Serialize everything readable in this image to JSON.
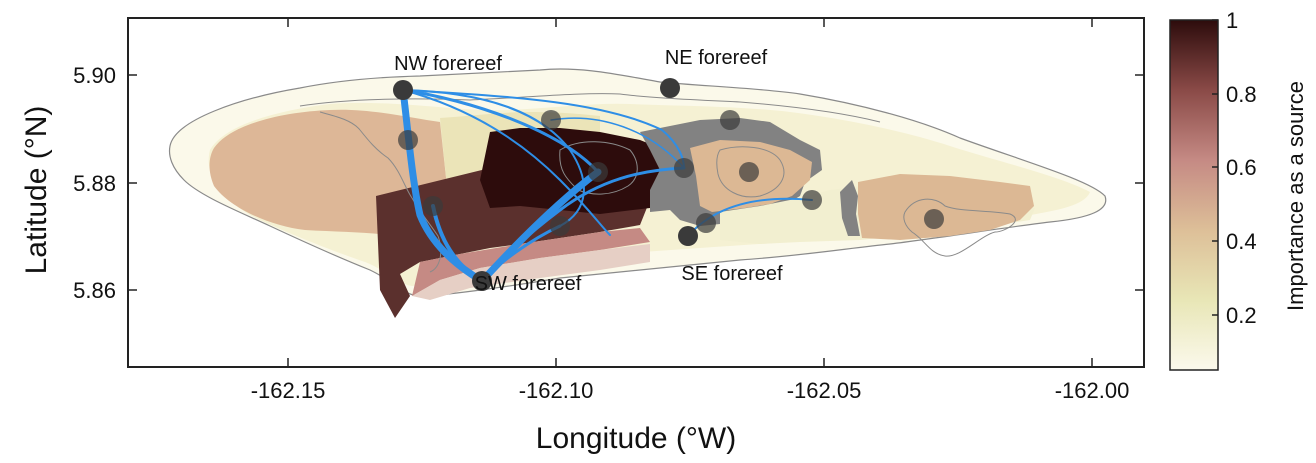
{
  "axes": {
    "xlabel": "Longitude (°W)",
    "ylabel": "Latitude (°N)",
    "xlim": [
      -162.18,
      -161.99
    ],
    "ylim": [
      5.84,
      5.91
    ],
    "x_ticks": [
      {
        "value": -162.15,
        "label": "-162.15"
      },
      {
        "value": -162.1,
        "label": "-162.10"
      },
      {
        "value": -162.05,
        "label": "-162.05"
      },
      {
        "value": -162.0,
        "label": "-162.00"
      }
    ],
    "y_ticks": [
      {
        "value": 5.9,
        "label": "5.90"
      },
      {
        "value": 5.88,
        "label": "5.88"
      },
      {
        "value": 5.86,
        "label": "5.86"
      }
    ]
  },
  "colorbar": {
    "title": "Importance as a source",
    "range": [
      0.05,
      1
    ],
    "ticks": [
      {
        "value": 1,
        "label": "1"
      },
      {
        "value": 0.8,
        "label": "0.8"
      },
      {
        "value": 0.6,
        "label": "0.6"
      },
      {
        "value": 0.4,
        "label": "0.4"
      },
      {
        "value": 0.2,
        "label": "0.2"
      }
    ],
    "colors": [
      "#fbf9ec",
      "#e8e6b6",
      "#ddbf98",
      "#c58a84",
      "#8a4a47",
      "#2d0c0c"
    ]
  },
  "site_labels": {
    "nw": "NW forereef",
    "ne": "NE forereef",
    "sw": "SW forereef",
    "se": "SE forereef"
  },
  "colors": {
    "node": "#3a3a3a",
    "connection": "#2e8ee6",
    "outline": "#8a8a8a",
    "shallow": "#777777"
  }
}
